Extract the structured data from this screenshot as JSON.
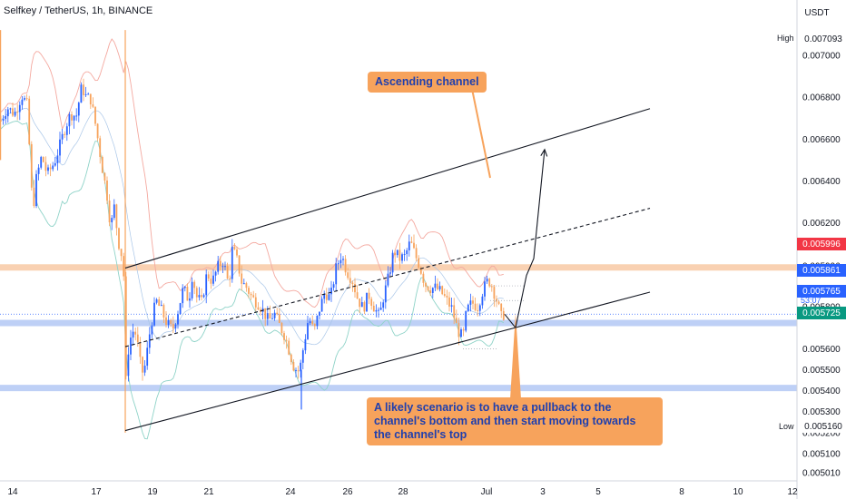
{
  "header": {
    "title": "Selfkey / TetherUS, 1h, BINANCE",
    "currency": "USDT"
  },
  "annotations": {
    "channel_label": "Ascending channel",
    "scenario_text": "A likely scenario is to have a pullback to the channel's bottom and then start moving towards the channel's top"
  },
  "price_axis": {
    "high_label": "High",
    "high_value": "0.007093",
    "low_label": "Low",
    "low_value": "0.005160",
    "current_price": "0.005765",
    "countdown": "53:07",
    "tag_red": "0.005996",
    "tag_blue": "0.005861",
    "tag_green": "0.005725"
  },
  "colors": {
    "bull": "#2962ff",
    "bear": "#f7a35c",
    "upper_band": "#f4a9a0",
    "lower_band": "#8fd3c8",
    "support_zone": "#b3c8f5",
    "resistance_zone": "#f8c9a4"
  },
  "chart_data": {
    "type": "candlestick",
    "symbol": "Selfkey / TetherUS, 1h, BINANCE",
    "y_ticks": [
      "0.007000",
      "0.006800",
      "0.006600",
      "0.006400",
      "0.006200",
      "0.005996",
      "0.005800",
      "0.005600",
      "0.005500",
      "0.005400",
      "0.005300",
      "0.005200",
      "0.005100",
      "0.005010"
    ],
    "x_ticks": [
      "14",
      "17",
      "19",
      "21",
      "24",
      "26",
      "28",
      "Jul",
      "3",
      "5",
      "8",
      "10",
      "12"
    ],
    "ylim": [
      0.00497,
      0.00722
    ],
    "close_path": [
      [
        0,
        0.00668
      ],
      [
        8,
        0.00675
      ],
      [
        16,
        0.00672
      ],
      [
        24,
        0.00681
      ],
      [
        30,
        0.00676
      ],
      [
        36,
        0.00625
      ],
      [
        40,
        0.00641
      ],
      [
        46,
        0.00652
      ],
      [
        52,
        0.00643
      ],
      [
        60,
        0.00649
      ],
      [
        66,
        0.00657
      ],
      [
        72,
        0.00666
      ],
      [
        78,
        0.00672
      ],
      [
        84,
        0.00671
      ],
      [
        90,
        0.00685
      ],
      [
        95,
        0.0068
      ],
      [
        100,
        0.00679
      ],
      [
        106,
        0.00665
      ],
      [
        112,
        0.00648
      ],
      [
        118,
        0.00633
      ],
      [
        122,
        0.00618
      ],
      [
        126,
        0.00628
      ],
      [
        130,
        0.00612
      ],
      [
        136,
        0.00601
      ],
      [
        138,
        0.0054
      ],
      [
        142,
        0.00563
      ],
      [
        148,
        0.0057
      ],
      [
        152,
        0.00561
      ],
      [
        156,
        0.00548
      ],
      [
        160,
        0.00552
      ],
      [
        166,
        0.00571
      ],
      [
        172,
        0.00583
      ],
      [
        178,
        0.00578
      ],
      [
        184,
        0.00572
      ],
      [
        190,
        0.00569
      ],
      [
        196,
        0.00578
      ],
      [
        202,
        0.00589
      ],
      [
        208,
        0.00583
      ],
      [
        212,
        0.00596
      ],
      [
        216,
        0.00585
      ],
      [
        222,
        0.00582
      ],
      [
        228,
        0.00596
      ],
      [
        234,
        0.00592
      ],
      [
        240,
        0.00599
      ],
      [
        246,
        0.00602
      ],
      [
        252,
        0.0059
      ],
      [
        256,
        0.00608
      ],
      [
        262,
        0.00601
      ],
      [
        266,
        0.00592
      ],
      [
        272,
        0.00589
      ],
      [
        278,
        0.00584
      ],
      [
        284,
        0.00582
      ],
      [
        290,
        0.00578
      ],
      [
        296,
        0.00573
      ],
      [
        302,
        0.00577
      ],
      [
        308,
        0.00571
      ],
      [
        314,
        0.00566
      ],
      [
        318,
        0.0056
      ],
      [
        324,
        0.00551
      ],
      [
        330,
        0.00549
      ],
      [
        334,
        0.0056
      ],
      [
        340,
        0.00575
      ],
      [
        346,
        0.00568
      ],
      [
        352,
        0.00579
      ],
      [
        358,
        0.00587
      ],
      [
        364,
        0.00584
      ],
      [
        370,
        0.00598
      ],
      [
        376,
        0.00605
      ],
      [
        382,
        0.00597
      ],
      [
        388,
        0.00593
      ],
      [
        394,
        0.00584
      ],
      [
        400,
        0.00579
      ],
      [
        406,
        0.00586
      ],
      [
        412,
        0.0058
      ],
      [
        418,
        0.00575
      ],
      [
        422,
        0.00584
      ],
      [
        428,
        0.00594
      ],
      [
        434,
        0.00607
      ],
      [
        440,
        0.00603
      ],
      [
        446,
        0.00604
      ],
      [
        452,
        0.00611
      ],
      [
        458,
        0.00604
      ],
      [
        462,
        0.006
      ],
      [
        468,
        0.00591
      ],
      [
        474,
        0.00589
      ],
      [
        480,
        0.00589
      ],
      [
        486,
        0.00587
      ],
      [
        492,
        0.00583
      ],
      [
        498,
        0.00579
      ],
      [
        504,
        0.00569
      ],
      [
        510,
        0.00565
      ],
      [
        514,
        0.00578
      ],
      [
        520,
        0.00582
      ],
      [
        526,
        0.0058
      ],
      [
        532,
        0.00588
      ],
      [
        538,
        0.00593
      ],
      [
        542,
        0.0059
      ],
      [
        548,
        0.00582
      ],
      [
        552,
        0.00575
      ],
      [
        556,
        0.00577
      ]
    ],
    "projection_path": [
      [
        556,
        0.005765
      ],
      [
        568,
        0.0057
      ],
      [
        580,
        0.00595
      ],
      [
        588,
        0.00603
      ],
      [
        600,
        0.00655
      ]
    ],
    "channel_upper": [
      [
        138,
        0.005985
      ],
      [
        716,
        0.006745
      ]
    ],
    "channel_middle": [
      [
        138,
        0.00561
      ],
      [
        716,
        0.00627
      ]
    ],
    "channel_lower": [
      [
        138,
        0.00521
      ],
      [
        716,
        0.00587
      ]
    ],
    "horizontal_zones": [
      0.00599,
      0.005725,
      0.005415
    ],
    "current_price": 0.005765,
    "x_tick_positions": [
      [
        14,
        "14"
      ],
      [
        106,
        "17"
      ],
      [
        168,
        "19"
      ],
      [
        230,
        "21"
      ],
      [
        320,
        "24"
      ],
      [
        383,
        "26"
      ],
      [
        444,
        "28"
      ],
      [
        536,
        "Jul"
      ],
      [
        598,
        "3"
      ],
      [
        659,
        "5"
      ],
      [
        751,
        "8"
      ],
      [
        813,
        "10"
      ],
      [
        873,
        "12"
      ]
    ],
    "high": 0.007093,
    "low": 0.00516,
    "grid": false
  }
}
